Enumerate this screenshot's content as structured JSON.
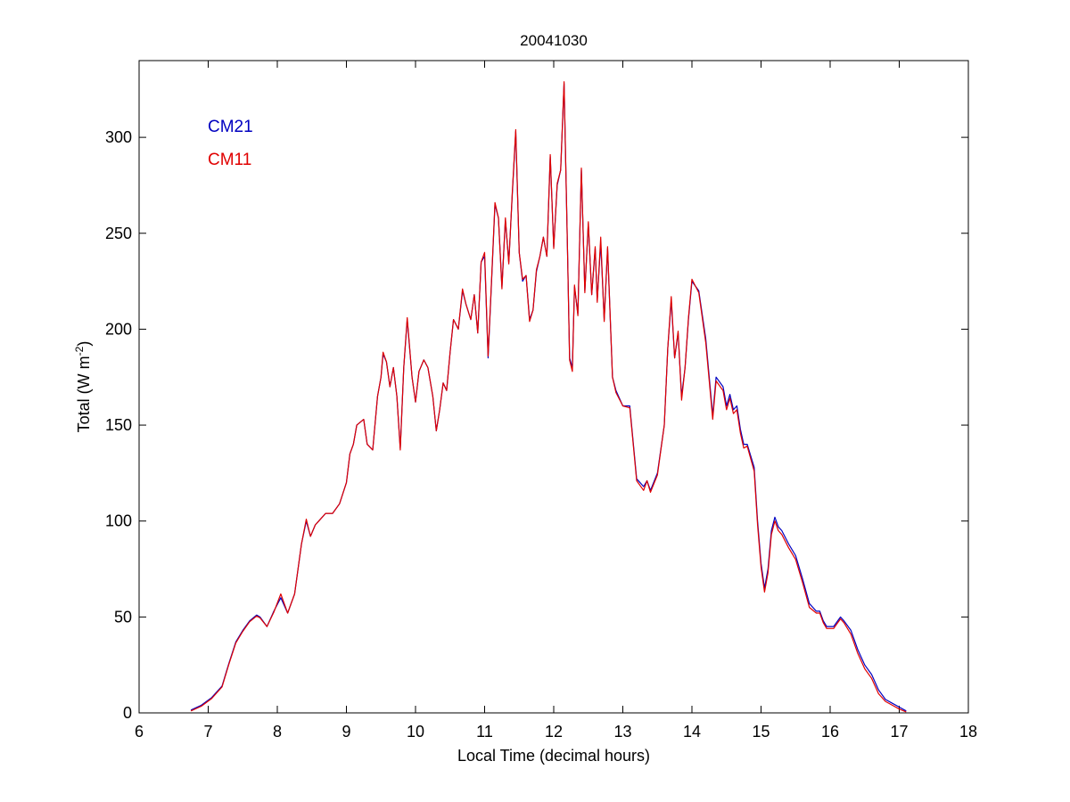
{
  "chart_data": {
    "type": "line",
    "title": "20041030",
    "xlabel": "Local Time (decimal hours)",
    "ylabel_main": "Total (W m",
    "ylabel_sup": "-2",
    "ylabel_close": ")",
    "xlim": [
      6,
      18
    ],
    "ylim": [
      0,
      340
    ],
    "xticks": [
      6,
      7,
      8,
      9,
      10,
      11,
      12,
      13,
      14,
      15,
      16,
      17,
      18
    ],
    "yticks": [
      0,
      50,
      100,
      150,
      200,
      250,
      300
    ],
    "grid": false,
    "legend_position": "top-left",
    "series": [
      {
        "name": "CM21",
        "color": "#0000c0",
        "points": [
          [
            6.75,
            1.5
          ],
          [
            6.9,
            4
          ],
          [
            7.05,
            8
          ],
          [
            7.2,
            14
          ],
          [
            7.3,
            26
          ],
          [
            7.4,
            37
          ],
          [
            7.5,
            43
          ],
          [
            7.6,
            48
          ],
          [
            7.7,
            51
          ],
          [
            7.75,
            50
          ],
          [
            7.85,
            45
          ],
          [
            7.95,
            53
          ],
          [
            8.05,
            60
          ],
          [
            8.15,
            52
          ],
          [
            8.25,
            62
          ],
          [
            8.35,
            88
          ],
          [
            8.42,
            100
          ],
          [
            8.48,
            92
          ],
          [
            8.55,
            98
          ],
          [
            8.6,
            100
          ],
          [
            8.7,
            104
          ],
          [
            8.8,
            104
          ],
          [
            8.9,
            109
          ],
          [
            9.0,
            120
          ],
          [
            9.05,
            135
          ],
          [
            9.1,
            140
          ],
          [
            9.15,
            150
          ],
          [
            9.25,
            153
          ],
          [
            9.3,
            140
          ],
          [
            9.38,
            137
          ],
          [
            9.45,
            165
          ],
          [
            9.5,
            175
          ],
          [
            9.53,
            187
          ],
          [
            9.58,
            183
          ],
          [
            9.63,
            170
          ],
          [
            9.68,
            180
          ],
          [
            9.73,
            165
          ],
          [
            9.78,
            138
          ],
          [
            9.83,
            180
          ],
          [
            9.88,
            205
          ],
          [
            9.95,
            175
          ],
          [
            10.0,
            162
          ],
          [
            10.05,
            178
          ],
          [
            10.12,
            184
          ],
          [
            10.18,
            180
          ],
          [
            10.25,
            165
          ],
          [
            10.3,
            147
          ],
          [
            10.35,
            158
          ],
          [
            10.4,
            172
          ],
          [
            10.45,
            168
          ],
          [
            10.5,
            188
          ],
          [
            10.55,
            205
          ],
          [
            10.62,
            200
          ],
          [
            10.68,
            220
          ],
          [
            10.73,
            213
          ],
          [
            10.8,
            205
          ],
          [
            10.85,
            218
          ],
          [
            10.9,
            198
          ],
          [
            10.95,
            235
          ],
          [
            11.0,
            238
          ],
          [
            11.05,
            185
          ],
          [
            11.1,
            225
          ],
          [
            11.15,
            265
          ],
          [
            11.2,
            258
          ],
          [
            11.25,
            222
          ],
          [
            11.3,
            257
          ],
          [
            11.35,
            235
          ],
          [
            11.4,
            270
          ],
          [
            11.45,
            303
          ],
          [
            11.5,
            240
          ],
          [
            11.55,
            225
          ],
          [
            11.6,
            228
          ],
          [
            11.65,
            205
          ],
          [
            11.7,
            210
          ],
          [
            11.75,
            230
          ],
          [
            11.8,
            238
          ],
          [
            11.85,
            248
          ],
          [
            11.9,
            238
          ],
          [
            11.95,
            290
          ],
          [
            12.0,
            243
          ],
          [
            12.05,
            275
          ],
          [
            12.1,
            283
          ],
          [
            12.15,
            328
          ],
          [
            12.2,
            240
          ],
          [
            12.23,
            185
          ],
          [
            12.27,
            180
          ],
          [
            12.3,
            222
          ],
          [
            12.35,
            208
          ],
          [
            12.4,
            283
          ],
          [
            12.45,
            220
          ],
          [
            12.5,
            255
          ],
          [
            12.55,
            218
          ],
          [
            12.6,
            242
          ],
          [
            12.63,
            215
          ],
          [
            12.68,
            245
          ],
          [
            12.73,
            205
          ],
          [
            12.78,
            242
          ],
          [
            12.85,
            175
          ],
          [
            12.9,
            168
          ],
          [
            13.0,
            160
          ],
          [
            13.1,
            160
          ],
          [
            13.2,
            122
          ],
          [
            13.3,
            118
          ],
          [
            13.35,
            121
          ],
          [
            13.4,
            116
          ],
          [
            13.5,
            125
          ],
          [
            13.6,
            150
          ],
          [
            13.65,
            190
          ],
          [
            13.7,
            215
          ],
          [
            13.75,
            185
          ],
          [
            13.8,
            198
          ],
          [
            13.85,
            165
          ],
          [
            13.9,
            180
          ],
          [
            13.95,
            205
          ],
          [
            14.0,
            225
          ],
          [
            14.1,
            220
          ],
          [
            14.2,
            195
          ],
          [
            14.25,
            175
          ],
          [
            14.3,
            155
          ],
          [
            14.35,
            175
          ],
          [
            14.45,
            170
          ],
          [
            14.5,
            160
          ],
          [
            14.55,
            166
          ],
          [
            14.6,
            158
          ],
          [
            14.65,
            160
          ],
          [
            14.7,
            148
          ],
          [
            14.75,
            140
          ],
          [
            14.8,
            140
          ],
          [
            14.9,
            128
          ],
          [
            14.95,
            100
          ],
          [
            15.0,
            78
          ],
          [
            15.05,
            65
          ],
          [
            15.1,
            75
          ],
          [
            15.15,
            95
          ],
          [
            15.2,
            102
          ],
          [
            15.25,
            97
          ],
          [
            15.3,
            95
          ],
          [
            15.4,
            88
          ],
          [
            15.5,
            82
          ],
          [
            15.6,
            70
          ],
          [
            15.7,
            57
          ],
          [
            15.8,
            53
          ],
          [
            15.85,
            53
          ],
          [
            15.9,
            48
          ],
          [
            15.95,
            45
          ],
          [
            16.05,
            45
          ],
          [
            16.15,
            50
          ],
          [
            16.2,
            48
          ],
          [
            16.3,
            43
          ],
          [
            16.4,
            33
          ],
          [
            16.5,
            25
          ],
          [
            16.6,
            20
          ],
          [
            16.7,
            12
          ],
          [
            16.8,
            7
          ],
          [
            16.9,
            5
          ],
          [
            17.0,
            3
          ],
          [
            17.1,
            1
          ]
        ]
      },
      {
        "name": "CM11",
        "color": "#e00000",
        "points": [
          [
            6.75,
            1
          ],
          [
            6.9,
            3.5
          ],
          [
            7.05,
            7.5
          ],
          [
            7.2,
            13.5
          ],
          [
            7.3,
            25.5
          ],
          [
            7.4,
            36.5
          ],
          [
            7.5,
            42.5
          ],
          [
            7.6,
            47.5
          ],
          [
            7.7,
            50.5
          ],
          [
            7.75,
            49.5
          ],
          [
            7.85,
            45
          ],
          [
            7.95,
            52.5
          ],
          [
            8.05,
            62
          ],
          [
            8.15,
            52
          ],
          [
            8.25,
            62
          ],
          [
            8.35,
            88
          ],
          [
            8.42,
            101
          ],
          [
            8.48,
            92
          ],
          [
            8.55,
            98
          ],
          [
            8.6,
            100
          ],
          [
            8.7,
            104
          ],
          [
            8.8,
            104
          ],
          [
            8.9,
            109
          ],
          [
            9.0,
            120
          ],
          [
            9.05,
            135
          ],
          [
            9.1,
            140
          ],
          [
            9.15,
            150
          ],
          [
            9.25,
            153
          ],
          [
            9.3,
            140
          ],
          [
            9.38,
            137
          ],
          [
            9.45,
            165
          ],
          [
            9.5,
            175
          ],
          [
            9.53,
            188
          ],
          [
            9.58,
            183
          ],
          [
            9.63,
            170
          ],
          [
            9.68,
            180
          ],
          [
            9.73,
            165
          ],
          [
            9.78,
            137
          ],
          [
            9.83,
            180
          ],
          [
            9.88,
            206
          ],
          [
            9.95,
            175
          ],
          [
            10.0,
            162
          ],
          [
            10.05,
            178
          ],
          [
            10.12,
            184
          ],
          [
            10.18,
            180
          ],
          [
            10.25,
            165
          ],
          [
            10.3,
            147
          ],
          [
            10.35,
            158
          ],
          [
            10.4,
            172
          ],
          [
            10.45,
            168
          ],
          [
            10.5,
            188
          ],
          [
            10.55,
            205
          ],
          [
            10.62,
            200
          ],
          [
            10.68,
            221
          ],
          [
            10.73,
            213
          ],
          [
            10.8,
            205
          ],
          [
            10.85,
            218
          ],
          [
            10.9,
            198
          ],
          [
            10.95,
            235
          ],
          [
            11.0,
            240
          ],
          [
            11.05,
            186
          ],
          [
            11.1,
            226
          ],
          [
            11.15,
            266
          ],
          [
            11.2,
            258
          ],
          [
            11.25,
            221
          ],
          [
            11.3,
            258
          ],
          [
            11.35,
            234
          ],
          [
            11.4,
            271
          ],
          [
            11.45,
            304
          ],
          [
            11.5,
            240
          ],
          [
            11.55,
            226
          ],
          [
            11.6,
            228
          ],
          [
            11.65,
            204
          ],
          [
            11.7,
            210
          ],
          [
            11.75,
            231
          ],
          [
            11.8,
            238
          ],
          [
            11.85,
            248
          ],
          [
            11.9,
            238
          ],
          [
            11.95,
            291
          ],
          [
            12.0,
            242
          ],
          [
            12.05,
            276
          ],
          [
            12.1,
            283
          ],
          [
            12.15,
            329
          ],
          [
            12.2,
            240
          ],
          [
            12.23,
            184
          ],
          [
            12.27,
            178
          ],
          [
            12.3,
            223
          ],
          [
            12.35,
            207
          ],
          [
            12.4,
            284
          ],
          [
            12.45,
            219
          ],
          [
            12.5,
            256
          ],
          [
            12.55,
            218
          ],
          [
            12.6,
            243
          ],
          [
            12.63,
            214
          ],
          [
            12.68,
            248
          ],
          [
            12.73,
            204
          ],
          [
            12.78,
            243
          ],
          [
            12.85,
            175
          ],
          [
            12.9,
            167
          ],
          [
            13.0,
            160
          ],
          [
            13.1,
            159
          ],
          [
            13.2,
            121
          ],
          [
            13.3,
            116
          ],
          [
            13.35,
            121
          ],
          [
            13.4,
            115
          ],
          [
            13.5,
            124
          ],
          [
            13.6,
            150
          ],
          [
            13.65,
            190
          ],
          [
            13.7,
            217
          ],
          [
            13.75,
            185
          ],
          [
            13.8,
            199
          ],
          [
            13.85,
            163
          ],
          [
            13.9,
            180
          ],
          [
            13.95,
            206
          ],
          [
            14.0,
            226
          ],
          [
            14.1,
            219
          ],
          [
            14.2,
            193
          ],
          [
            14.25,
            173
          ],
          [
            14.3,
            153
          ],
          [
            14.35,
            173
          ],
          [
            14.45,
            168
          ],
          [
            14.5,
            158
          ],
          [
            14.55,
            164
          ],
          [
            14.6,
            156
          ],
          [
            14.65,
            158
          ],
          [
            14.7,
            146
          ],
          [
            14.75,
            138
          ],
          [
            14.8,
            139
          ],
          [
            14.9,
            126
          ],
          [
            14.95,
            98
          ],
          [
            15.0,
            76
          ],
          [
            15.05,
            63
          ],
          [
            15.1,
            73
          ],
          [
            15.15,
            93
          ],
          [
            15.2,
            100
          ],
          [
            15.25,
            95
          ],
          [
            15.3,
            93
          ],
          [
            15.4,
            86
          ],
          [
            15.5,
            80
          ],
          [
            15.6,
            68
          ],
          [
            15.7,
            55
          ],
          [
            15.8,
            52
          ],
          [
            15.85,
            52
          ],
          [
            15.9,
            47
          ],
          [
            15.95,
            44
          ],
          [
            16.05,
            44
          ],
          [
            16.15,
            49
          ],
          [
            16.2,
            47
          ],
          [
            16.3,
            41
          ],
          [
            16.4,
            31
          ],
          [
            16.5,
            23
          ],
          [
            16.6,
            18
          ],
          [
            16.7,
            10
          ],
          [
            16.8,
            6
          ],
          [
            16.9,
            4
          ],
          [
            17.0,
            2
          ],
          [
            17.1,
            0.5
          ]
        ]
      }
    ]
  }
}
